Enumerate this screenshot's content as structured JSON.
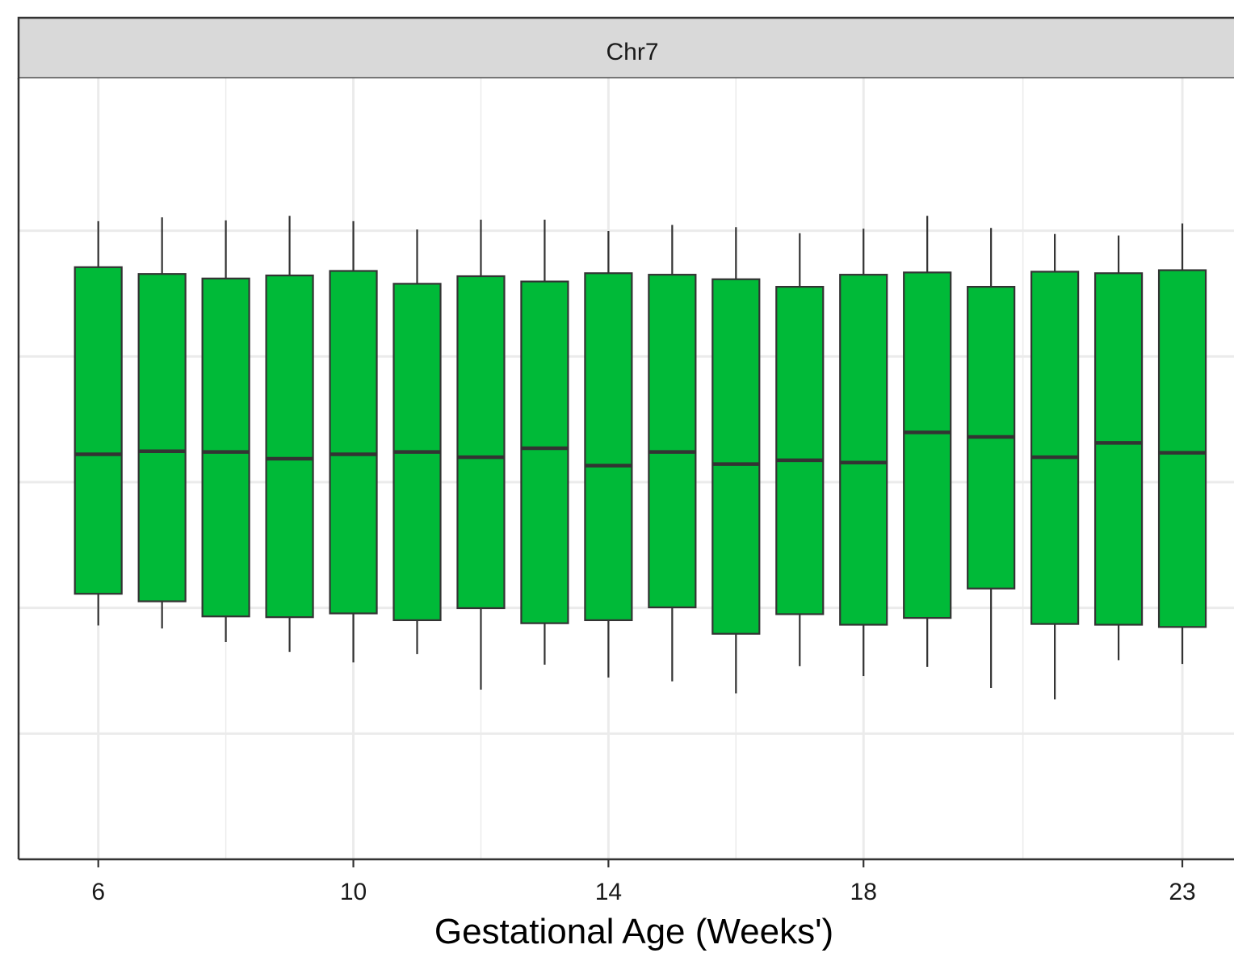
{
  "chart_data": {
    "type": "boxplot",
    "facet": "Chr7",
    "xlabel": "Gestational Age (Weeks')",
    "ylabel": "",
    "x_ticks": [
      6,
      10,
      14,
      18,
      23
    ],
    "xlim": [
      4.75,
      24
    ],
    "ylim": [
      0,
      100
    ],
    "grid": true,
    "box_color": "#00BA38",
    "categories": [
      "6",
      "7",
      "8",
      "9",
      "10",
      "11",
      "12",
      "13",
      "14",
      "15",
      "16",
      "17",
      "18",
      "19",
      "20",
      "21",
      "22",
      "23"
    ],
    "boxes": [
      {
        "x": 6,
        "min": 31.0,
        "q1": 35.2,
        "median": 53.7,
        "q3": 78.5,
        "max": 84.6
      },
      {
        "x": 7,
        "min": 30.6,
        "q1": 34.2,
        "median": 54.1,
        "q3": 77.6,
        "max": 85.1
      },
      {
        "x": 8,
        "min": 28.8,
        "q1": 32.2,
        "median": 54.0,
        "q3": 77.0,
        "max": 84.7
      },
      {
        "x": 9,
        "min": 27.5,
        "q1": 32.1,
        "median": 53.1,
        "q3": 77.4,
        "max": 85.3
      },
      {
        "x": 10,
        "min": 26.1,
        "q1": 32.6,
        "median": 53.7,
        "q3": 78.0,
        "max": 84.6
      },
      {
        "x": 11,
        "min": 27.2,
        "q1": 31.7,
        "median": 54.0,
        "q3": 76.3,
        "max": 83.5
      },
      {
        "x": 12,
        "min": 22.5,
        "q1": 33.3,
        "median": 53.3,
        "q3": 77.3,
        "max": 84.8
      },
      {
        "x": 13,
        "min": 25.8,
        "q1": 31.3,
        "median": 54.5,
        "q3": 76.6,
        "max": 84.8
      },
      {
        "x": 14,
        "min": 24.1,
        "q1": 31.7,
        "median": 52.2,
        "q3": 77.7,
        "max": 83.3
      },
      {
        "x": 15,
        "min": 23.6,
        "q1": 33.4,
        "median": 54.0,
        "q3": 77.5,
        "max": 84.1
      },
      {
        "x": 16,
        "min": 22.0,
        "q1": 29.9,
        "median": 52.4,
        "q3": 76.9,
        "max": 83.8
      },
      {
        "x": 17,
        "min": 25.6,
        "q1": 32.5,
        "median": 52.9,
        "q3": 75.9,
        "max": 83.0
      },
      {
        "x": 18,
        "min": 24.3,
        "q1": 31.1,
        "median": 52.6,
        "q3": 77.5,
        "max": 83.6
      },
      {
        "x": 19,
        "min": 25.5,
        "q1": 32.0,
        "median": 56.6,
        "q3": 77.8,
        "max": 85.3
      },
      {
        "x": 20,
        "min": 22.7,
        "q1": 35.9,
        "median": 56.0,
        "q3": 75.9,
        "max": 83.7
      },
      {
        "x": 21,
        "min": 21.2,
        "q1": 31.2,
        "median": 53.3,
        "q3": 77.9,
        "max": 82.9
      },
      {
        "x": 22,
        "min": 26.4,
        "q1": 31.1,
        "median": 55.2,
        "q3": 77.7,
        "max": 82.7
      },
      {
        "x": 23,
        "min": 25.9,
        "q1": 30.8,
        "median": 53.9,
        "q3": 78.1,
        "max": 84.3
      }
    ]
  }
}
